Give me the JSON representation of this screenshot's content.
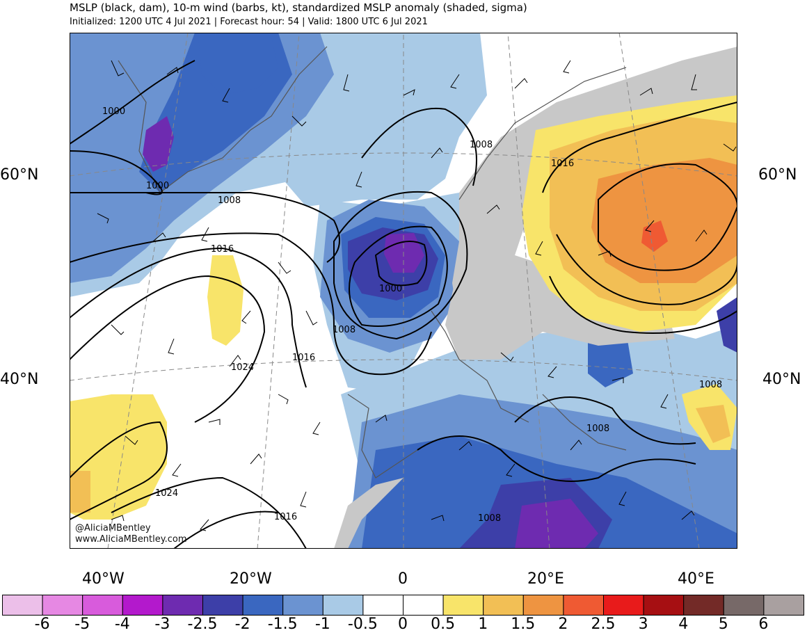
{
  "title": "MSLP (black, dam), 10-m wind (barbs, kt), standardized MSLP anomaly (shaded, sigma)",
  "subtitle": "Initialized: 1200 UTC 4 Jul 2021 | Forecast hour: 54 | Valid: 1800 UTC 6 Jul 2021",
  "lat_labels": {
    "lat60_left": "60°N",
    "lat60_right": "60°N",
    "lat40_left": "40°N",
    "lat40_right": "40°N"
  },
  "lon_labels": {
    "lon40w": "40°W",
    "lon20w": "20°W",
    "lon0": "0",
    "lon20e": "20°E",
    "lon40e": "40°E"
  },
  "contour_labels": {
    "c1000_greenland_a": "1000",
    "c1000_greenland_b": "1000",
    "c1008_atlantic": "1008",
    "c1016_atlantic": "1016",
    "c1000_northsea": "1000",
    "c1008_bay": "1008",
    "c1016_iberia_w": "1016",
    "c1024_azores": "1024",
    "c1008_scandinavia": "1008",
    "c1016_russia": "1016",
    "c1008_balkans": "1008",
    "c1008_turkey": "1008",
    "c1024_southwest": "1024",
    "c1016_south": "1016",
    "c1008_africa": "1008"
  },
  "credit": {
    "handle": "@AliciaMBentley",
    "site": "www.AliciaMBentley.com"
  },
  "colorbar": {
    "colors": [
      "#ecbfe9",
      "#e688e3",
      "#d85bdc",
      "#b319cc",
      "#6e2bb0",
      "#3d3fa8",
      "#3a67c0",
      "#6b93d1",
      "#a9cae6",
      "#ffffff",
      "#ffffff",
      "#f8e46a",
      "#f2bf55",
      "#ee9441",
      "#ef5a33",
      "#e81b1b",
      "#a60f12",
      "#732a27",
      "#776968",
      "#a9a0a0"
    ],
    "labels": [
      "-6",
      "-5",
      "-4",
      "-3",
      "-2.5",
      "-2",
      "-1.5",
      "-1",
      "-0.5",
      "0",
      "0.5",
      "1",
      "1.5",
      "2",
      "2.5",
      "3",
      "4",
      "5",
      "6"
    ]
  }
}
